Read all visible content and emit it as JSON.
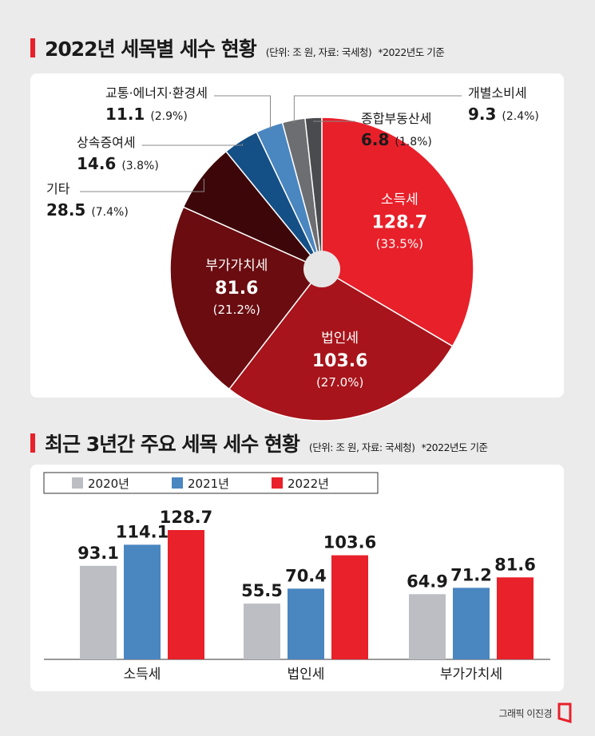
{
  "pie_section": {
    "title": "2022년 세목별 세수 현황",
    "note": "(단위: 조 원, 자료: 국세청)",
    "note2": "*2022년도 기준"
  },
  "bar_section": {
    "title": "최근 3년간 주요 세목 세수 현황",
    "note": "(단위: 조 원, 자료: 국세청)",
    "note2": "*2022년도 기준"
  },
  "credit": "그래픽 이진경",
  "colors": {
    "accent": "#e8212a",
    "y2020": "#bcbec4",
    "y2021": "#4a86c0",
    "y2022": "#e8212a"
  },
  "chart_data": [
    {
      "type": "pie",
      "title": "2022년 세목별 세수 현황",
      "unit": "조 원",
      "slices": [
        {
          "label": "소득세",
          "value": 128.7,
          "pct": "(33.5%)",
          "color": "#e8202a"
        },
        {
          "label": "법인세",
          "value": 103.6,
          "pct": "(27.0%)",
          "color": "#a8141b"
        },
        {
          "label": "부가가치세",
          "value": 81.6,
          "pct": "(21.2%)",
          "color": "#6a0c10"
        },
        {
          "label": "기타",
          "value": 28.5,
          "pct": "(7.4%)",
          "color": "#3d0709"
        },
        {
          "label": "상속증여세",
          "value": 14.6,
          "pct": "(3.8%)",
          "color": "#144f86"
        },
        {
          "label": "교통·에너지·환경세",
          "value": 11.1,
          "pct": "(2.9%)",
          "color": "#4a86c0"
        },
        {
          "label": "개별소비세",
          "value": 9.3,
          "pct": "(2.4%)",
          "color": "#6d6e71"
        },
        {
          "label": "종합부동산세",
          "value": 6.8,
          "pct": "(1.8%)",
          "color": "#4a4b4e"
        }
      ]
    },
    {
      "type": "bar",
      "title": "최근 3년간 주요 세목 세수 현황",
      "unit": "조 원",
      "categories": [
        "소득세",
        "법인세",
        "부가가치세"
      ],
      "series": [
        {
          "name": "2020년",
          "values": [
            93.1,
            55.5,
            64.9
          ],
          "color": "#bcbec4"
        },
        {
          "name": "2021년",
          "values": [
            114.1,
            70.4,
            71.2
          ],
          "color": "#4a86c0"
        },
        {
          "name": "2022년",
          "values": [
            128.7,
            103.6,
            81.6
          ],
          "color": "#e8212a"
        }
      ],
      "legend_position": "top-left"
    }
  ]
}
